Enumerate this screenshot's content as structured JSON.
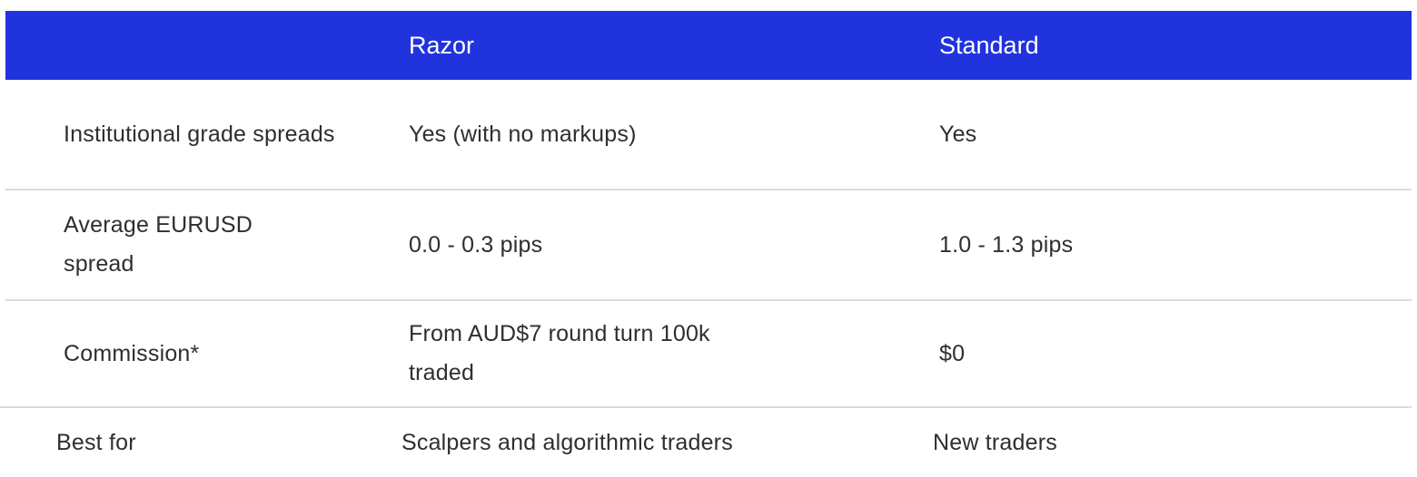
{
  "table": {
    "columns": [
      "",
      "Razor",
      "Standard"
    ],
    "header_color": "#2033dc",
    "rows": [
      {
        "feature": "Institutional grade spreads",
        "razor": "Yes (with no markups)",
        "standard": "Yes"
      },
      {
        "feature": "Average EURUSD spread",
        "razor": "0.0 - 0.3 pips",
        "standard": "1.0 - 1.3 pips"
      },
      {
        "feature": "Commission*",
        "razor": "From AUD$7 round turn 100k traded",
        "standard": "$0"
      },
      {
        "feature": "Best for",
        "razor": "Scalpers and algorithmic traders",
        "standard": "New traders"
      }
    ]
  }
}
